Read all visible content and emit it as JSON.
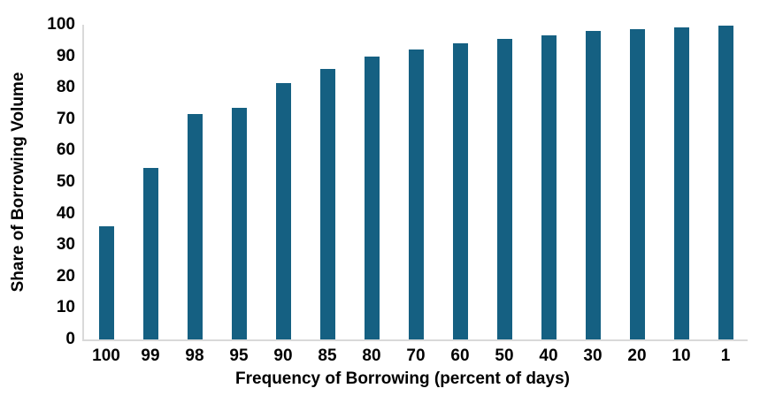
{
  "chart_data": {
    "type": "bar",
    "title": "",
    "categories": [
      "100",
      "99",
      "98",
      "95",
      "90",
      "85",
      "80",
      "70",
      "60",
      "50",
      "40",
      "30",
      "20",
      "10",
      "1"
    ],
    "values": [
      36,
      54.5,
      71.5,
      73.5,
      81.5,
      86,
      90,
      92,
      94,
      95.5,
      96.5,
      98,
      98.5,
      99.2,
      99.7
    ],
    "xlabel": "Frequency of Borrowing (percent of days)",
    "ylabel": "Share of Borrowing Volume",
    "ylim": [
      0,
      100
    ],
    "y_ticks": [
      0,
      10,
      20,
      30,
      40,
      50,
      60,
      70,
      80,
      90,
      100
    ],
    "grid": false,
    "legend_position": "none",
    "colors": {
      "bar": "#156082",
      "axis_line": "#d9d9d9",
      "text": "#000000",
      "background": "#ffffff"
    }
  }
}
